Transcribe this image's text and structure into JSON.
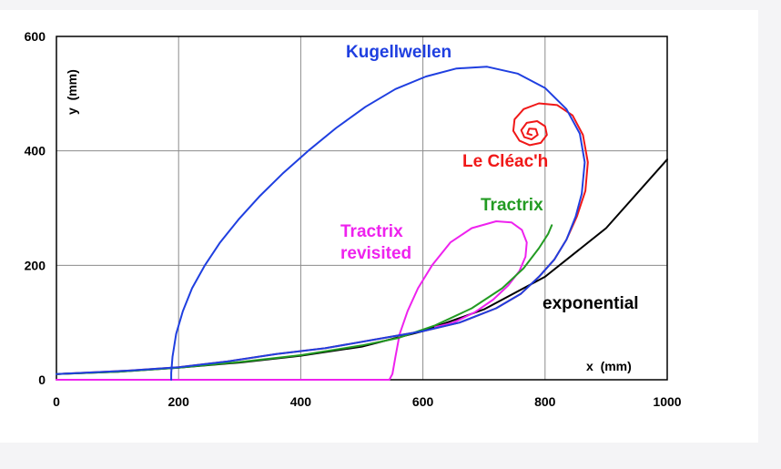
{
  "chart_data": {
    "type": "line",
    "title": "",
    "xlabel": "x  (mm)",
    "ylabel": "y  (mm)",
    "xlim": [
      0,
      1000
    ],
    "ylim": [
      0,
      600
    ],
    "x_ticks": [
      0,
      200,
      400,
      600,
      800,
      1000
    ],
    "y_ticks": [
      0,
      200,
      400,
      600
    ],
    "grid": true,
    "legend": "none (inline curve labels)",
    "series": [
      {
        "name": "Kugellwellen",
        "color": "#1f3fe0",
        "points": [
          [
            188,
            0
          ],
          [
            188,
            12
          ],
          [
            190,
            40
          ],
          [
            196,
            80
          ],
          [
            207,
            120
          ],
          [
            222,
            160
          ],
          [
            243,
            200
          ],
          [
            268,
            240
          ],
          [
            298,
            280
          ],
          [
            332,
            320
          ],
          [
            370,
            360
          ],
          [
            412,
            400
          ],
          [
            458,
            440
          ],
          [
            506,
            477
          ],
          [
            555,
            508
          ],
          [
            605,
            530
          ],
          [
            655,
            544
          ],
          [
            705,
            547
          ],
          [
            755,
            535
          ],
          [
            800,
            510
          ],
          [
            835,
            473
          ],
          [
            857,
            430
          ],
          [
            865,
            380
          ],
          [
            860,
            325
          ],
          [
            850,
            285
          ],
          [
            835,
            245
          ],
          [
            815,
            210
          ],
          [
            790,
            180
          ],
          [
            760,
            150
          ],
          [
            720,
            125
          ],
          [
            660,
            100
          ],
          [
            600,
            85
          ],
          [
            520,
            70
          ],
          [
            440,
            55
          ],
          [
            360,
            45
          ],
          [
            280,
            32
          ],
          [
            200,
            22
          ],
          [
            120,
            16
          ],
          [
            0,
            10
          ]
        ]
      },
      {
        "name": "Le Cléac'h",
        "color": "#f01818",
        "points": [
          [
            0,
            10
          ],
          [
            120,
            16
          ],
          [
            200,
            22
          ],
          [
            280,
            32
          ],
          [
            360,
            45
          ],
          [
            440,
            55
          ],
          [
            520,
            70
          ],
          [
            600,
            85
          ],
          [
            660,
            100
          ],
          [
            720,
            125
          ],
          [
            760,
            150
          ],
          [
            790,
            180
          ],
          [
            815,
            210
          ],
          [
            835,
            245
          ],
          [
            852,
            285
          ],
          [
            866,
            330
          ],
          [
            870,
            380
          ],
          [
            862,
            428
          ],
          [
            845,
            462
          ],
          [
            820,
            480
          ],
          [
            790,
            483
          ],
          [
            765,
            473
          ],
          [
            750,
            455
          ],
          [
            748,
            435
          ],
          [
            758,
            418
          ],
          [
            775,
            410
          ],
          [
            793,
            414
          ],
          [
            803,
            428
          ],
          [
            800,
            443
          ],
          [
            787,
            452
          ],
          [
            770,
            449
          ],
          [
            761,
            436
          ],
          [
            766,
            424
          ],
          [
            778,
            420
          ],
          [
            788,
            428
          ],
          [
            785,
            438
          ],
          [
            774,
            439
          ],
          [
            771,
            430
          ],
          [
            778,
            428
          ]
        ]
      },
      {
        "name": "Tractrix",
        "color": "#239b23",
        "points": [
          [
            0,
            10
          ],
          [
            100,
            14
          ],
          [
            200,
            21
          ],
          [
            300,
            31
          ],
          [
            400,
            43
          ],
          [
            500,
            60
          ],
          [
            560,
            73
          ],
          [
            620,
            95
          ],
          [
            680,
            125
          ],
          [
            730,
            160
          ],
          [
            765,
            195
          ],
          [
            790,
            230
          ],
          [
            805,
            255
          ],
          [
            811,
            270
          ]
        ]
      },
      {
        "name": "Tractrix\nrevisited",
        "color": "#ee22ee",
        "points": [
          [
            0,
            0
          ],
          [
            545,
            0
          ],
          [
            550,
            10
          ],
          [
            555,
            40
          ],
          [
            562,
            80
          ],
          [
            575,
            120
          ],
          [
            592,
            160
          ],
          [
            615,
            200
          ],
          [
            645,
            240
          ],
          [
            680,
            265
          ],
          [
            720,
            277
          ],
          [
            745,
            275
          ],
          [
            762,
            262
          ],
          [
            770,
            240
          ],
          [
            768,
            215
          ],
          [
            758,
            190
          ],
          [
            740,
            165
          ],
          [
            715,
            140
          ],
          [
            685,
            118
          ],
          [
            650,
            100
          ],
          [
            620,
            92
          ]
        ]
      },
      {
        "name": "exponential",
        "color": "#000000",
        "points": [
          [
            0,
            10
          ],
          [
            100,
            14
          ],
          [
            200,
            21
          ],
          [
            300,
            30
          ],
          [
            400,
            42
          ],
          [
            500,
            58
          ],
          [
            600,
            85
          ],
          [
            700,
            123
          ],
          [
            800,
            180
          ],
          [
            900,
            265
          ],
          [
            1000,
            385
          ]
        ]
      }
    ]
  }
}
